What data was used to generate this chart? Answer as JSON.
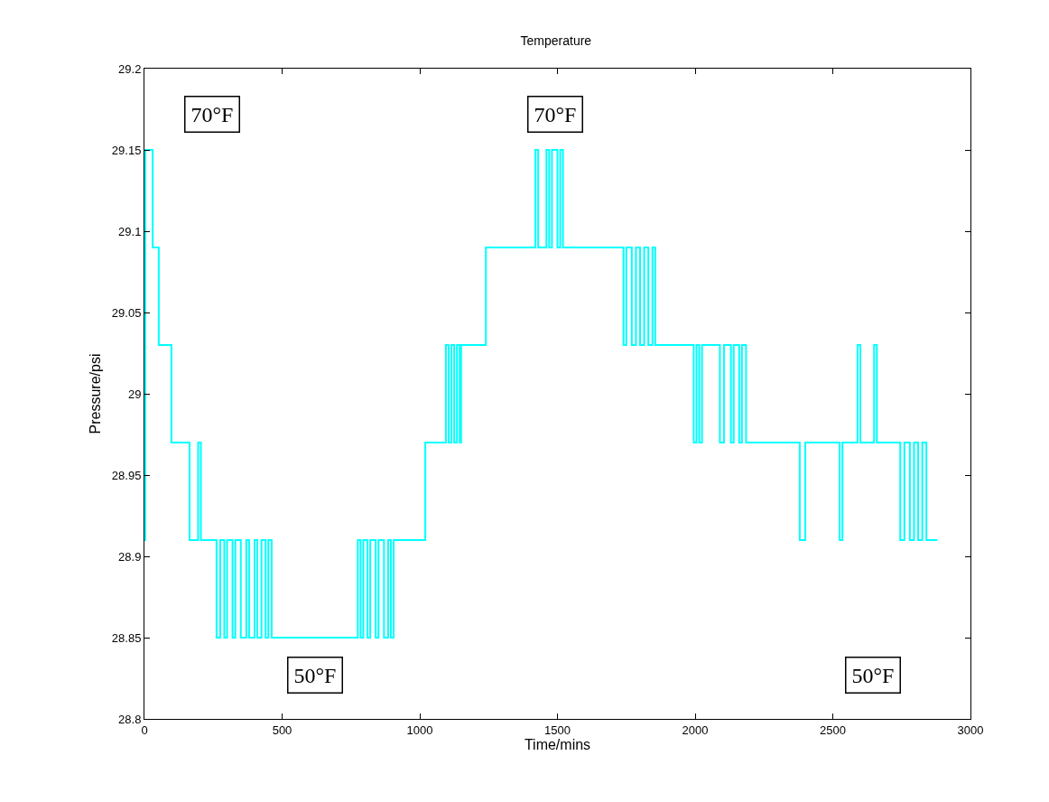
{
  "chart_data": {
    "type": "step",
    "title": "Temperature",
    "xlabel": "Time/mins",
    "ylabel": "Pressure/psi",
    "xlim": [
      0,
      3000
    ],
    "xticks": [
      0,
      500,
      1000,
      1500,
      2000,
      2500,
      3000
    ],
    "ylim": [
      28.8,
      29.2
    ],
    "yticks": [
      28.8,
      28.85,
      28.9,
      28.95,
      29,
      29.05,
      29.1,
      29.15,
      29.2
    ],
    "grid": false,
    "marker": "none",
    "line_style": "solid",
    "annotations": [
      "70°F",
      "70°F",
      "50°F",
      "50°F"
    ],
    "series": [
      {
        "color": "#00ffff",
        "x": [
          0,
          3,
          30,
          52,
          98,
          164,
          195,
          205,
          262,
          275,
          290,
          300,
          320,
          330,
          350,
          370,
          380,
          400,
          410,
          425,
          440,
          450,
          462,
          775,
          785,
          795,
          810,
          820,
          840,
          850,
          870,
          885,
          895,
          905,
          1020,
          1095,
          1105,
          1115,
          1125,
          1135,
          1145,
          1150,
          1240,
          1420,
          1430,
          1460,
          1470,
          1480,
          1500,
          1510,
          1520,
          1740,
          1750,
          1770,
          1785,
          1800,
          1815,
          1830,
          1845,
          1855,
          1995,
          2005,
          2015,
          2025,
          2090,
          2105,
          2130,
          2140,
          2160,
          2170,
          2185,
          2380,
          2400,
          2525,
          2535,
          2590,
          2600,
          2650,
          2660,
          2745,
          2760,
          2780,
          2795,
          2810,
          2825,
          2840,
          2880
        ],
        "values": [
          28.91,
          29.15,
          29.09,
          29.03,
          28.97,
          28.91,
          28.97,
          28.91,
          28.85,
          28.91,
          28.85,
          28.91,
          28.85,
          28.91,
          28.85,
          28.91,
          28.85,
          28.91,
          28.85,
          28.91,
          28.85,
          28.91,
          28.85,
          28.91,
          28.85,
          28.91,
          28.85,
          28.91,
          28.85,
          28.91,
          28.85,
          28.91,
          28.85,
          28.91,
          28.97,
          29.03,
          28.97,
          29.03,
          28.97,
          29.03,
          28.97,
          29.03,
          29.09,
          29.15,
          29.09,
          29.15,
          29.09,
          29.15,
          29.09,
          29.15,
          29.09,
          29.03,
          29.09,
          29.03,
          29.09,
          29.03,
          29.09,
          29.03,
          29.09,
          29.03,
          28.97,
          29.03,
          28.97,
          29.03,
          28.97,
          29.03,
          28.97,
          29.03,
          28.97,
          29.03,
          28.97,
          28.91,
          28.97,
          28.91,
          28.97,
          29.03,
          28.97,
          29.03,
          28.97,
          28.91,
          28.97,
          28.91,
          28.97,
          28.91,
          28.97,
          28.91,
          28.91
        ]
      }
    ]
  }
}
